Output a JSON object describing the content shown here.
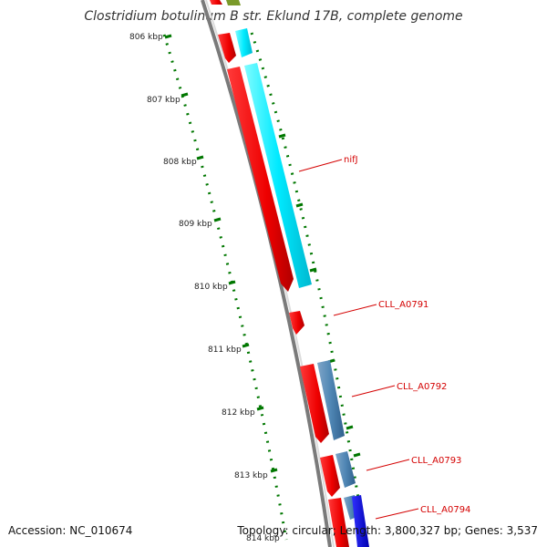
{
  "title": "Clostridium botulinum B str. Eklund 17B, complete genome",
  "footer": {
    "accession": "Accession: NC_010674",
    "summary": "Topology: circular; Length: 3,800,327 bp; Genes: 3,537"
  },
  "ticks": [
    "806 kbp",
    "807 kbp",
    "808 kbp",
    "809 kbp",
    "810 kbp",
    "811 kbp",
    "812 kbp",
    "813 kbp",
    "814 kbp"
  ],
  "gene_labels": [
    "nifJ",
    "CLL_A0791",
    "CLL_A0792",
    "CLL_A0793",
    "CLL_A0794"
  ],
  "colors": {
    "cds": "#ff0000",
    "cds_dark": "#b30000",
    "cyan": "#00f0ff",
    "steelblue": "#4682b4",
    "blue": "#0000ee",
    "olive": "#7a9a2a",
    "tick_green": "#007700",
    "backbone": "#888888",
    "label_red": "#d40000"
  }
}
